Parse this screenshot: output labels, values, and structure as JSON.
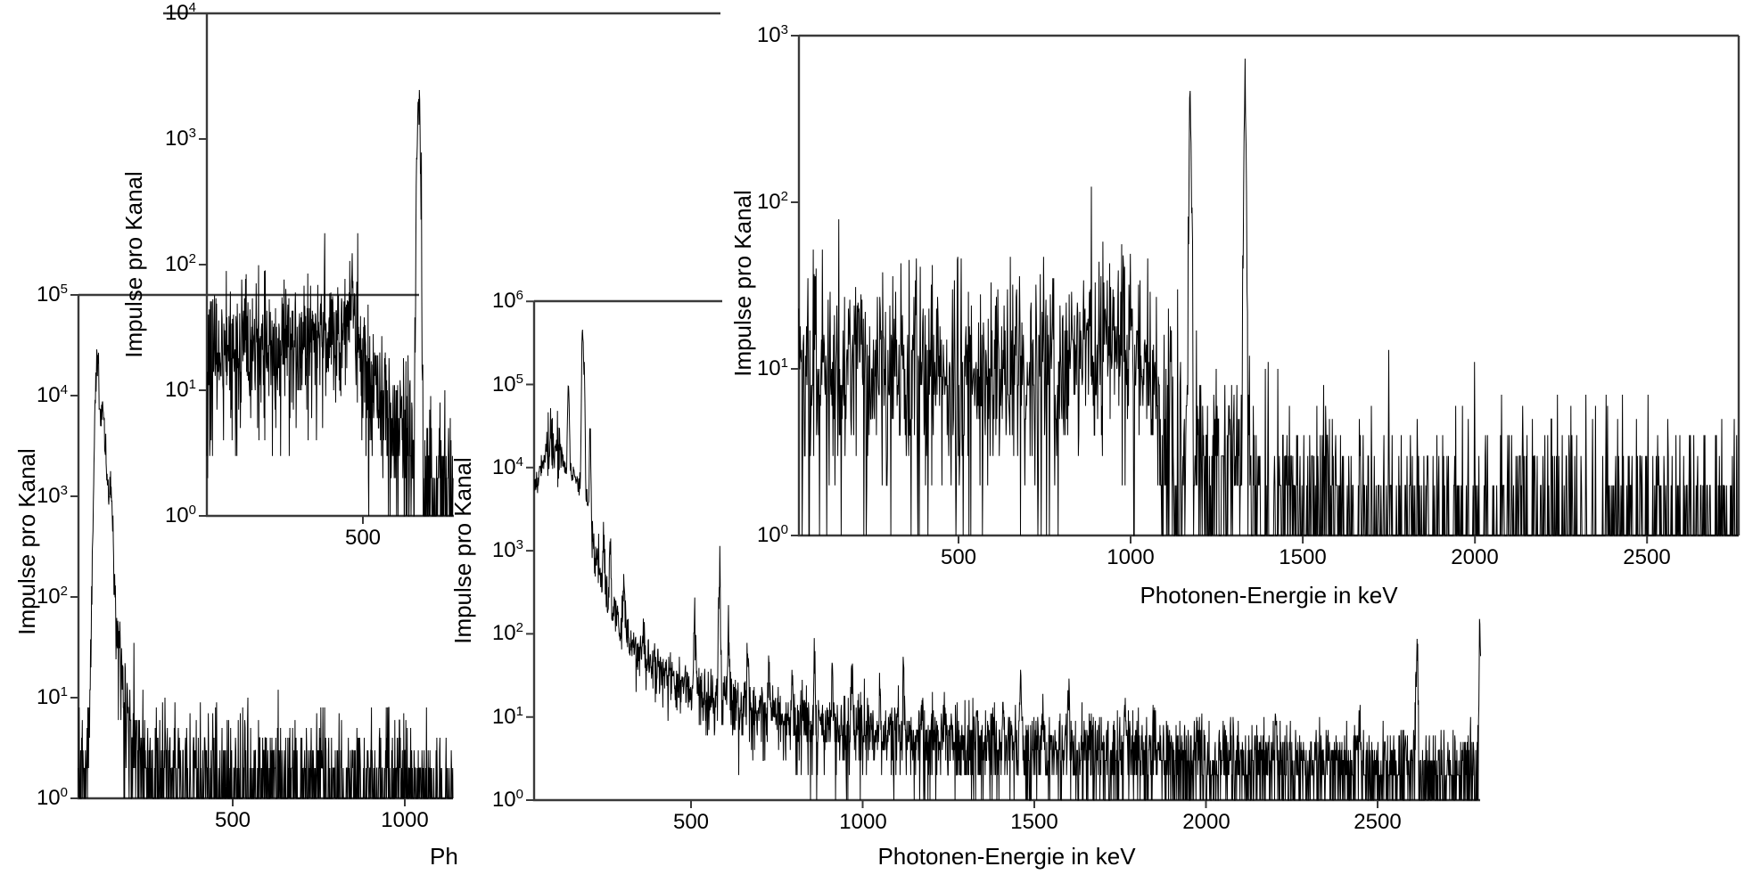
{
  "colors": {
    "background": "#ffffff",
    "axis": "#3a3a3a",
    "trace": "#000000"
  },
  "chart_data": [
    {
      "id": "spectrum-bottom-left",
      "type": "line",
      "ylabel": "Impulse pro Kanal",
      "xlabel": "Ph",
      "y_tick_exponents": [
        0,
        1,
        2,
        3,
        4,
        5
      ],
      "x_ticks": [
        500,
        1000
      ],
      "xlim_kev": [
        52,
        1140
      ],
      "ylim_log10": [
        0,
        5
      ],
      "channel_width_kev": 1,
      "seed": 7,
      "noise": {
        "sigma": 0.25,
        "high_threshold": 300,
        "high_sigma": 0.1
      },
      "envelope": [
        [
          52,
          1.2
        ],
        [
          70,
          1.5
        ],
        [
          80,
          2.5
        ],
        [
          88,
          30
        ],
        [
          94,
          600
        ],
        [
          100,
          9000
        ],
        [
          106,
          26000
        ],
        [
          110,
          22000
        ],
        [
          115,
          6000
        ],
        [
          121,
          8500
        ],
        [
          127,
          5000
        ],
        [
          133,
          2200
        ],
        [
          139,
          800
        ],
        [
          145,
          1300
        ],
        [
          152,
          420
        ],
        [
          158,
          140
        ],
        [
          165,
          45
        ],
        [
          172,
          18
        ],
        [
          180,
          9
        ],
        [
          192,
          6
        ],
        [
          205,
          4.2
        ],
        [
          220,
          3
        ],
        [
          245,
          2.4
        ],
        [
          280,
          2
        ],
        [
          330,
          1.8
        ],
        [
          420,
          1.6
        ],
        [
          540,
          1.5
        ],
        [
          700,
          1.45
        ],
        [
          900,
          1.4
        ],
        [
          1048,
          1.4
        ],
        [
          1052,
          1.0
        ],
        [
          1140,
          1.0
        ]
      ],
      "peaks": []
    },
    {
      "id": "spectrum-main",
      "type": "line",
      "ylabel": "Impulse pro Kanal",
      "xlabel": "Photonen-Energie in keV",
      "y_tick_exponents": [
        0,
        1,
        2,
        3,
        4,
        5,
        6
      ],
      "x_ticks": [
        500,
        1000,
        1500,
        2000,
        2500
      ],
      "xlim_kev": [
        44,
        2800
      ],
      "ylim_log10": [
        0,
        6
      ],
      "channel_width_kev": 1,
      "seed": 19,
      "noise": {
        "sigma": 0.17,
        "high_threshold": 2000,
        "high_sigma": 0.07,
        "boost": [
          82,
          122,
          0.26
        ]
      },
      "envelope": [
        [
          44,
          5500
        ],
        [
          60,
          9000
        ],
        [
          75,
          15000
        ],
        [
          88,
          22000
        ],
        [
          100,
          24000
        ],
        [
          112,
          19000
        ],
        [
          125,
          13000
        ],
        [
          138,
          10000
        ],
        [
          152,
          8000
        ],
        [
          165,
          7000
        ],
        [
          178,
          6000
        ],
        [
          190,
          5200
        ],
        [
          200,
          4200
        ],
        [
          210,
          1500
        ],
        [
          225,
          700
        ],
        [
          240,
          420
        ],
        [
          260,
          260
        ],
        [
          280,
          170
        ],
        [
          300,
          120
        ],
        [
          330,
          80
        ],
        [
          360,
          55
        ],
        [
          400,
          38
        ],
        [
          450,
          28
        ],
        [
          500,
          22
        ],
        [
          560,
          17
        ],
        [
          620,
          13.5
        ],
        [
          700,
          11
        ],
        [
          800,
          9
        ],
        [
          900,
          7.8
        ],
        [
          1000,
          7
        ],
        [
          1100,
          6.3
        ],
        [
          1200,
          5.7
        ],
        [
          1350,
          5
        ],
        [
          1500,
          4.4
        ],
        [
          1650,
          3.9
        ],
        [
          1800,
          3.5
        ],
        [
          2000,
          3.1
        ],
        [
          2200,
          2.8
        ],
        [
          2400,
          2.5
        ],
        [
          2600,
          2.3
        ],
        [
          2800,
          2.2
        ]
      ],
      "peaks": [
        [
          143,
          80000,
          1.8
        ],
        [
          184,
          430000,
          1.8
        ],
        [
          189,
          140000,
          1.5
        ],
        [
          206,
          28000,
          1.5
        ],
        [
          245,
          900,
          2
        ],
        [
          265,
          480,
          2
        ],
        [
          305,
          220,
          2
        ],
        [
          360,
          80,
          2
        ],
        [
          511,
          140,
          2.2
        ],
        [
          583,
          480,
          2
        ],
        [
          609,
          95,
          2
        ],
        [
          665,
          55,
          2
        ],
        [
          727,
          42,
          2
        ],
        [
          795,
          26,
          2
        ],
        [
          860,
          36,
          2
        ],
        [
          911,
          32,
          2
        ],
        [
          969,
          26,
          2
        ],
        [
          1050,
          14,
          2
        ],
        [
          1120,
          20,
          2
        ],
        [
          1173,
          11,
          2
        ],
        [
          1238,
          10,
          2
        ],
        [
          1332,
          9,
          2
        ],
        [
          1408,
          8,
          2
        ],
        [
          1460,
          24,
          2.2
        ],
        [
          1525,
          8,
          2
        ],
        [
          1600,
          12,
          2
        ],
        [
          1661,
          9,
          2
        ],
        [
          1764,
          10,
          2
        ],
        [
          1847,
          7,
          2
        ],
        [
          2103,
          5,
          2
        ],
        [
          2204,
          6,
          2
        ],
        [
          2448,
          5,
          2
        ],
        [
          2614,
          48,
          2.5
        ],
        [
          2798,
          115,
          1.5
        ]
      ]
    },
    {
      "id": "spectrum-inset-top-left",
      "type": "line",
      "ylabel": "Impulse pro Kanal",
      "xlabel": "",
      "y_tick_exponents": [
        0,
        1,
        2,
        3,
        4
      ],
      "x_ticks": [
        500
      ],
      "xlim_kev": [
        47,
        762
      ],
      "ylim_log10": [
        0,
        4
      ],
      "channel_width_kev": 1,
      "seed": 13,
      "noise": {
        "sigma": 0.28,
        "high_threshold": 300,
        "high_sigma": 0.1
      },
      "envelope": [
        [
          47,
          16
        ],
        [
          80,
          19
        ],
        [
          150,
          21
        ],
        [
          250,
          22
        ],
        [
          350,
          25
        ],
        [
          420,
          30
        ],
        [
          450,
          35
        ],
        [
          465,
          37
        ],
        [
          478,
          30
        ],
        [
          492,
          24
        ],
        [
          508,
          18
        ],
        [
          528,
          12
        ],
        [
          555,
          8.5
        ],
        [
          585,
          6
        ],
        [
          615,
          4.2
        ],
        [
          640,
          3
        ],
        [
          658,
          2.4
        ],
        [
          690,
          1.9
        ],
        [
          725,
          1.6
        ],
        [
          762,
          1.5
        ]
      ],
      "peaks": [
        [
          662,
          2000,
          3.5
        ]
      ]
    },
    {
      "id": "spectrum-inset-top-right",
      "type": "line",
      "ylabel": "Impulse pro Kanal",
      "xlabel": "Photonen-Energie in keV",
      "y_tick_exponents": [
        0,
        1,
        2,
        3
      ],
      "x_ticks": [
        500,
        1000,
        1500,
        2000,
        2500
      ],
      "xlim_kev": [
        36,
        2766
      ],
      "ylim_log10": [
        0,
        3
      ],
      "channel_width_kev": 1.4,
      "seed": 29,
      "noise": {
        "sigma": 0.3,
        "high_threshold": 100,
        "high_sigma": 0.1
      },
      "envelope": [
        [
          36,
          8.5
        ],
        [
          200,
          8.5
        ],
        [
          500,
          9
        ],
        [
          700,
          9.5
        ],
        [
          850,
          11
        ],
        [
          920,
          13
        ],
        [
          985,
          14
        ],
        [
          1030,
          11
        ],
        [
          1068,
          7
        ],
        [
          1100,
          4.8
        ],
        [
          1130,
          3.6
        ],
        [
          1160,
          3
        ],
        [
          1210,
          2.3
        ],
        [
          1265,
          2.2
        ],
        [
          1300,
          2.6
        ],
        [
          1342,
          1.8
        ],
        [
          1365,
          1.25
        ],
        [
          1450,
          1.18
        ],
        [
          1550,
          1.15
        ],
        [
          1700,
          1.12
        ],
        [
          1810,
          1.08
        ],
        [
          1850,
          1.02
        ],
        [
          2766,
          1.01
        ]
      ],
      "peaks": [
        [
          1173,
          380,
          2.6
        ],
        [
          1332,
          430,
          2.6
        ]
      ],
      "spikes": [
        [
          1452,
          2
        ],
        [
          1484,
          2
        ],
        [
          1645,
          2
        ],
        [
          1748,
          2
        ]
      ]
    }
  ]
}
